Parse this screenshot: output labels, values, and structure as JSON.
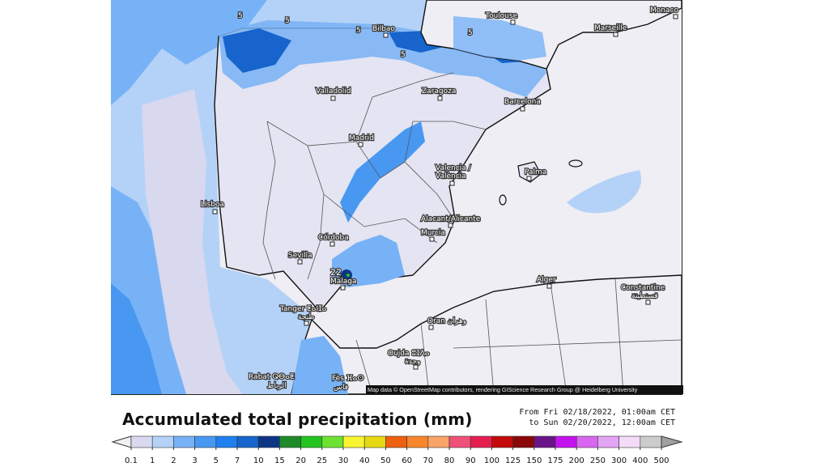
{
  "map": {
    "cities": [
      "Toulouse",
      "Monaco",
      "Marseille",
      "Bilbao",
      "Valladolid",
      "Zaragoza",
      "Barcelona",
      "Madrid",
      "Valencia /",
      "València",
      "Palma",
      "Lisboa",
      "Alacant/Alicante",
      "Murcia",
      "Córdoba",
      "Sevilla",
      "Málaga",
      "Alger",
      "Constantine",
      "قسنطينة",
      "Tanger ⵟⴰⵏⵊⴰ",
      "طنجة",
      "Oran وهران",
      "Oujda ⵓⵊⴷⴰ",
      "وجدة",
      "Rabat ⵕⴱⴰⵟ",
      "الرباط",
      "Fès ⴼⴰⵙ",
      "فاس"
    ],
    "contour_labels": [
      "5",
      "5",
      "5",
      "5",
      "5",
      "22"
    ],
    "attribution": "Map data © OpenStreetMap contributors, rendering GIScience Research Group @ Heidelberg University"
  },
  "legend": {
    "title": "Accumulated total precipitation (mm)",
    "period_from": "From Fri 02/18/2022, 01:00am CET",
    "period_to": "to Sun 02/20/2022, 12:00am CET",
    "ticks": [
      "0.1",
      "1",
      "2",
      "3",
      "5",
      "7",
      "10",
      "15",
      "20",
      "25",
      "30",
      "40",
      "50",
      "60",
      "70",
      "80",
      "90",
      "100",
      "125",
      "150",
      "175",
      "200",
      "250",
      "300",
      "400",
      "500"
    ],
    "colors": [
      "#d8d8ef",
      "#b4d2f8",
      "#78b2f6",
      "#4898f2",
      "#1e80f0",
      "#1664cc",
      "#0c3684",
      "#1e8a2a",
      "#24c41e",
      "#6ee232",
      "#f8f432",
      "#e6d812",
      "#ee6010",
      "#f8862a",
      "#f8a468",
      "#ee5078",
      "#e61e4e",
      "#c40a0a",
      "#8a0808",
      "#6a1488",
      "#c414ee",
      "#d866f0",
      "#e4a4f4",
      "#f4dcf8",
      "#cccccc"
    ],
    "under_color": "#f0f0f0",
    "over_color": "#a0a0a0"
  }
}
